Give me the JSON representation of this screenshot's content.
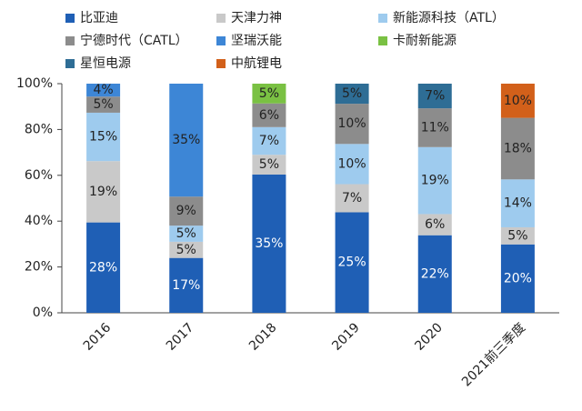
{
  "chart_data": {
    "type": "bar",
    "stacked": "percent",
    "categories": [
      "2016",
      "2017",
      "2018",
      "2019",
      "2020",
      "2021前三季度"
    ],
    "ylim": [
      0,
      100
    ],
    "yticks": [
      {
        "value": 0,
        "label": "0%"
      },
      {
        "value": 20,
        "label": "20%"
      },
      {
        "value": 40,
        "label": "40%"
      },
      {
        "value": 60,
        "label": "60%"
      },
      {
        "value": 80,
        "label": "80%"
      },
      {
        "value": 100,
        "label": "100%"
      }
    ],
    "series": [
      {
        "name": "比亚迪",
        "color": "#1f5fb5",
        "label_color": "#ffffff",
        "values": [
          28,
          17,
          35,
          25,
          22,
          20
        ],
        "value_labels": [
          "28%",
          "17%",
          "35%",
          "25%",
          "22%",
          "20%"
        ]
      },
      {
        "name": "天津力神",
        "color": "#c9c9c9",
        "label_color": "#222222",
        "values": [
          19,
          5,
          5,
          7,
          6,
          5
        ],
        "value_labels": [
          "19%",
          "5%",
          "5%",
          "7%",
          "6%",
          "5%"
        ]
      },
      {
        "name": "新能源科技（ATL）",
        "color": "#9ecbee",
        "label_color": "#222222",
        "values": [
          15,
          5,
          7,
          10,
          19,
          14
        ],
        "value_labels": [
          "15%",
          "5%",
          "7%",
          "10%",
          "19%",
          "14%"
        ]
      },
      {
        "name": "宁德时代（CATL）",
        "color": "#8c8c8c",
        "label_color": "#222222",
        "values": [
          5,
          9,
          6,
          10,
          11,
          18
        ],
        "value_labels": [
          "5%",
          "9%",
          "6%",
          "10%",
          "11%",
          "18%"
        ]
      },
      {
        "name": "坚瑞沃能",
        "color": "#3d86d6",
        "label_color": "#222222",
        "values": [
          4,
          35,
          null,
          null,
          null,
          null
        ],
        "value_labels": [
          "4%",
          "35%",
          null,
          null,
          null,
          null
        ]
      },
      {
        "name": "卡耐新能源",
        "color": "#7ac143",
        "label_color": "#222222",
        "values": [
          null,
          null,
          5,
          null,
          null,
          null
        ],
        "value_labels": [
          null,
          null,
          "5%",
          null,
          null,
          null
        ]
      },
      {
        "name": "星恒电源",
        "color": "#2e6d95",
        "label_color": "#222222",
        "values": [
          null,
          null,
          null,
          5,
          7,
          null
        ],
        "value_labels": [
          null,
          null,
          null,
          "5%",
          "7%",
          null
        ]
      },
      {
        "name": "中航锂电",
        "color": "#d2601a",
        "label_color": "#222222",
        "values": [
          null,
          null,
          null,
          null,
          null,
          10
        ],
        "value_labels": [
          null,
          null,
          null,
          null,
          null,
          "10%"
        ]
      }
    ]
  }
}
